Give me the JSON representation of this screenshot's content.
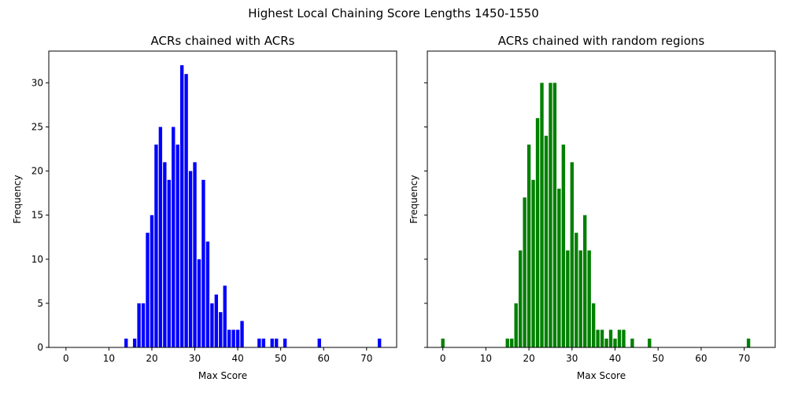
{
  "figure": {
    "suptitle": "Highest Local Chaining Score Lengths 1450-1550"
  },
  "chart_data": [
    {
      "type": "bar",
      "title": "ACRs chained with ACRs",
      "xlabel": "Max Score",
      "ylabel": "Frequency",
      "color": "#0000ff",
      "xlim": [
        -4,
        77
      ],
      "ylim": [
        0,
        33.6
      ],
      "xticks": [
        0,
        10,
        20,
        30,
        40,
        50,
        60,
        70
      ],
      "yticks": [
        0,
        5,
        10,
        15,
        20,
        25,
        30
      ],
      "show_ytick_labels": true,
      "x": [
        14,
        16,
        17,
        18,
        19,
        20,
        21,
        22,
        23,
        24,
        25,
        26,
        27,
        28,
        29,
        30,
        31,
        32,
        33,
        34,
        35,
        36,
        37,
        38,
        39,
        40,
        41,
        45,
        46,
        48,
        49,
        51,
        59,
        73
      ],
      "values": [
        1,
        1,
        5,
        5,
        13,
        15,
        23,
        25,
        21,
        19,
        25,
        23,
        32,
        31,
        20,
        21,
        10,
        19,
        12,
        5,
        6,
        4,
        7,
        2,
        2,
        2,
        3,
        1,
        1,
        1,
        1,
        1,
        1,
        1
      ]
    },
    {
      "type": "bar",
      "title": "ACRs chained with random regions",
      "xlabel": "Max Score",
      "ylabel": "Frequency",
      "color": "#008000",
      "xlim": [
        -3.6,
        77.2
      ],
      "ylim": [
        0,
        33.6
      ],
      "xticks": [
        0,
        10,
        20,
        30,
        40,
        50,
        60,
        70
      ],
      "yticks": [
        0,
        5,
        10,
        15,
        20,
        25,
        30
      ],
      "show_ytick_labels": false,
      "x": [
        0,
        15,
        16,
        17,
        18,
        19,
        20,
        21,
        22,
        23,
        24,
        25,
        26,
        27,
        28,
        29,
        30,
        31,
        32,
        33,
        34,
        35,
        36,
        37,
        38,
        39,
        40,
        41,
        42,
        44,
        48,
        71
      ],
      "values": [
        1,
        1,
        1,
        5,
        11,
        17,
        23,
        19,
        26,
        30,
        24,
        30,
        30,
        18,
        23,
        11,
        21,
        13,
        11,
        15,
        11,
        5,
        2,
        2,
        1,
        2,
        1,
        2,
        2,
        1,
        1,
        1
      ]
    }
  ]
}
